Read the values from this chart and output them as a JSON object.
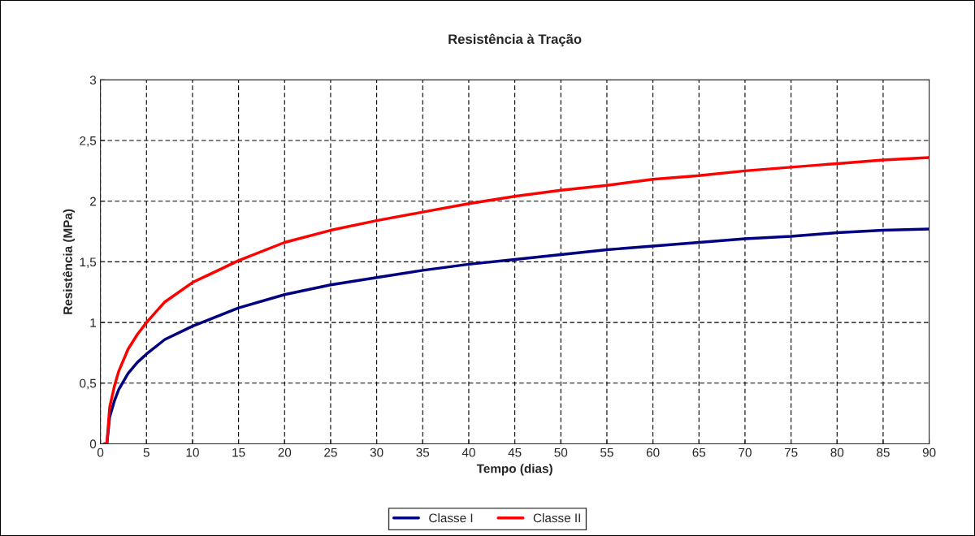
{
  "chart_data": {
    "type": "line",
    "title": "Resistência à Tração",
    "xlabel": "Tempo (dias)",
    "ylabel": "Resistência (MPa)",
    "xlim": [
      0,
      90
    ],
    "xticks": [
      0,
      5,
      10,
      15,
      20,
      25,
      30,
      35,
      40,
      45,
      50,
      55,
      60,
      65,
      70,
      75,
      80,
      85,
      90
    ],
    "ylim": [
      0,
      3
    ],
    "yticks": [
      {
        "value": 0,
        "label": "0"
      },
      {
        "value": 0.5,
        "label": "0,5"
      },
      {
        "value": 1,
        "label": "1"
      },
      {
        "value": 1.5,
        "label": "1,5"
      },
      {
        "value": 2,
        "label": "2"
      },
      {
        "value": 2.5,
        "label": "2,5"
      },
      {
        "value": 3,
        "label": "3"
      }
    ],
    "grid": true,
    "legend": "bottom",
    "marker": "none",
    "line_style": "solid",
    "series": [
      {
        "name": "Classe I",
        "color": "#000080",
        "x": [
          0.4,
          0.7,
          1,
          1.5,
          2,
          3,
          4,
          5,
          7,
          10,
          15,
          20,
          25,
          30,
          35,
          40,
          45,
          50,
          55,
          60,
          65,
          70,
          75,
          80,
          85,
          90
        ],
        "values": [
          0,
          0,
          0.22,
          0.35,
          0.45,
          0.58,
          0.67,
          0.74,
          0.86,
          0.97,
          1.12,
          1.23,
          1.31,
          1.37,
          1.43,
          1.48,
          1.52,
          1.56,
          1.6,
          1.63,
          1.66,
          1.69,
          1.71,
          1.74,
          1.76,
          1.77
        ]
      },
      {
        "name": "Classe II",
        "color": "#ff0000",
        "x": [
          0.4,
          0.7,
          1,
          1.5,
          2,
          3,
          4,
          5,
          7,
          10,
          15,
          20,
          25,
          30,
          35,
          40,
          45,
          50,
          55,
          60,
          65,
          70,
          75,
          80,
          85,
          90
        ],
        "values": [
          0,
          0,
          0.3,
          0.47,
          0.6,
          0.78,
          0.9,
          1.0,
          1.17,
          1.33,
          1.51,
          1.66,
          1.76,
          1.84,
          1.91,
          1.98,
          2.04,
          2.09,
          2.13,
          2.18,
          2.21,
          2.25,
          2.28,
          2.31,
          2.34,
          2.36
        ]
      }
    ]
  }
}
